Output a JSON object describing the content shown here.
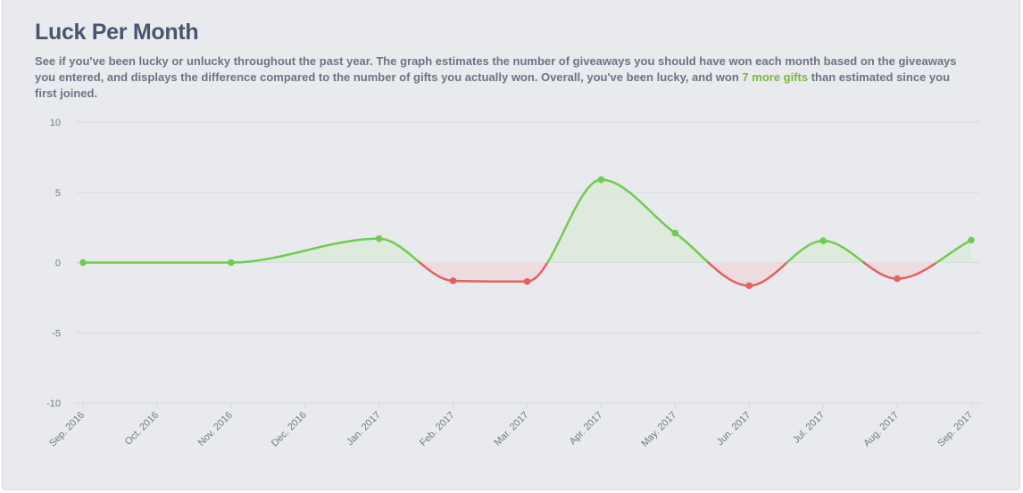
{
  "header": {
    "title": "Luck Per Month",
    "description_pre": "See if you've been lucky or unlucky throughout the past year. The graph estimates the number of giveaways you should have won each month based on the giveaways you entered, and displays the difference compared to the number of gifts you actually won. Overall, you've been lucky, and won ",
    "highlight": "7 more gifts",
    "description_post": " than estimated since you first joined."
  },
  "colors": {
    "positive": "#6fcc4f",
    "negative": "#e5605f",
    "positive_fill": "#dcebd8",
    "negative_fill": "#ecd8dc",
    "grid": "#d6d8de",
    "highlight": "#7ab83d"
  },
  "chart_data": {
    "type": "line",
    "title": "",
    "xlabel": "",
    "ylabel": "",
    "ylim": [
      -10,
      10
    ],
    "y_ticks": [
      10,
      5,
      0,
      -5,
      -10
    ],
    "categories": [
      "Sep. 2016",
      "Oct. 2016",
      "Nov. 2016",
      "Dec. 2016",
      "Jan. 2017",
      "Feb. 2017",
      "Mar. 2017",
      "Apr. 2017",
      "May. 2017",
      "Jun. 2017",
      "Jul. 2017",
      "Aug. 2017",
      "Sep. 2017"
    ],
    "points": [
      {
        "x": "Sep. 2016",
        "y": 0
      },
      {
        "x": "Nov. 2016",
        "y": 0
      },
      {
        "x": "Jan. 2017",
        "y": 1.7
      },
      {
        "x": "Feb. 2017",
        "y": -1.3
      },
      {
        "x": "Mar. 2017",
        "y": -1.35
      },
      {
        "x": "Apr. 2017",
        "y": 5.9
      },
      {
        "x": "May. 2017",
        "y": 2.1
      },
      {
        "x": "Jun. 2017",
        "y": -1.65
      },
      {
        "x": "Jul. 2017",
        "y": 1.55
      },
      {
        "x": "Aug. 2017",
        "y": -1.15
      },
      {
        "x": "Sep. 2017",
        "y": 1.6
      }
    ],
    "grid": true,
    "legend": "none"
  }
}
